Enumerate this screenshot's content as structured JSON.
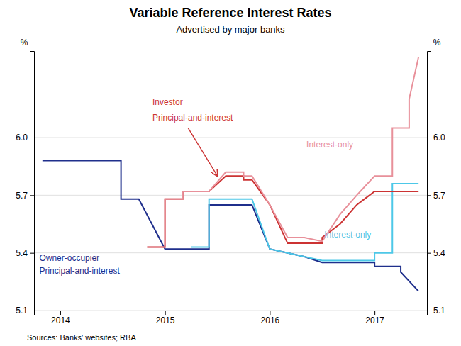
{
  "chart_data": {
    "type": "line",
    "title": "Variable Reference Interest Rates",
    "subtitle": "Advertised by major banks",
    "source": "Sources:  Banks' websites; RBA",
    "ylabel": "%",
    "y2label": "%",
    "xlim": [
      2013.75,
      2017.5
    ],
    "xticks": [
      2014,
      2015,
      2016,
      2017
    ],
    "ylim": [
      5.1,
      6.45
    ],
    "yticks": [
      5.1,
      5.4,
      5.7,
      {
        "value": 6.0,
        "label": "6.0"
      }
    ],
    "y2lim": [
      5.1,
      6.45
    ],
    "y2ticks": [
      5.1,
      5.4,
      5.7,
      {
        "value": 6.0,
        "label": "6.0"
      }
    ],
    "grid": "y",
    "series": [
      {
        "color": "#1f2f8c",
        "x": [
          2013.83,
          2014.58,
          2014.58,
          2014.75,
          2014.75,
          2015.0,
          2015.0,
          2015.42,
          2015.42,
          2015.67,
          2015.67,
          2015.83,
          2015.83,
          2016.0,
          2016.0,
          2016.17,
          2016.17,
          2016.33,
          2016.33,
          2016.5,
          2016.5,
          2016.67,
          2016.67,
          2017.0,
          2017.0,
          2017.25,
          2017.25,
          2017.42
        ],
        "values": [
          5.88,
          5.88,
          5.68,
          5.68,
          5.68,
          5.42,
          5.42,
          5.42,
          5.65,
          5.65,
          5.65,
          5.65,
          5.65,
          5.42,
          5.42,
          5.4,
          5.4,
          5.38,
          5.38,
          5.35,
          5.35,
          5.35,
          5.35,
          5.35,
          5.33,
          5.33,
          5.3,
          5.2
        ]
      },
      {
        "color": "#4dc8e8",
        "x": [
          2015.25,
          2015.42,
          2015.42,
          2015.67,
          2015.67,
          2015.83,
          2015.83,
          2016.0,
          2016.0,
          2016.17,
          2016.17,
          2016.33,
          2016.33,
          2016.5,
          2016.5,
          2016.67,
          2016.67,
          2017.0,
          2017.0,
          2017.17,
          2017.17,
          2017.42
        ],
        "values": [
          5.43,
          5.43,
          5.68,
          5.68,
          5.68,
          5.68,
          5.68,
          5.42,
          5.42,
          5.4,
          5.4,
          5.38,
          5.38,
          5.36,
          5.36,
          5.36,
          5.36,
          5.36,
          5.4,
          5.4,
          5.76,
          5.76
        ]
      },
      {
        "color": "#cc3333",
        "x": [
          2014.83,
          2015.0,
          2015.0,
          2015.17,
          2015.17,
          2015.42,
          2015.42,
          2015.58,
          2015.58,
          2015.75,
          2015.75,
          2015.83,
          2015.83,
          2016.0,
          2016.0,
          2016.17,
          2016.17,
          2016.33,
          2016.33,
          2016.5,
          2016.5,
          2016.67,
          2016.67,
          2016.83,
          2016.83,
          2017.0,
          2017.0,
          2017.42
        ],
        "values": [
          5.43,
          5.43,
          5.68,
          5.68,
          5.72,
          5.72,
          5.72,
          5.8,
          5.8,
          5.8,
          5.78,
          5.78,
          5.78,
          5.65,
          5.65,
          5.45,
          5.45,
          5.45,
          5.45,
          5.45,
          5.48,
          5.55,
          5.55,
          5.65,
          5.65,
          5.72,
          5.72,
          5.72
        ]
      },
      {
        "color": "#e8909a",
        "x": [
          2014.83,
          2015.0,
          2015.0,
          2015.17,
          2015.17,
          2015.42,
          2015.42,
          2015.58,
          2015.58,
          2015.75,
          2015.75,
          2015.83,
          2015.83,
          2016.0,
          2016.0,
          2016.17,
          2016.17,
          2016.33,
          2016.33,
          2016.5,
          2016.5,
          2016.67,
          2016.67,
          2016.83,
          2016.83,
          2017.0,
          2017.0,
          2017.17,
          2017.17,
          2017.33,
          2017.33,
          2017.42
        ],
        "values": [
          5.43,
          5.43,
          5.68,
          5.68,
          5.72,
          5.72,
          5.72,
          5.82,
          5.82,
          5.82,
          5.8,
          5.8,
          5.8,
          5.65,
          5.65,
          5.48,
          5.48,
          5.48,
          5.48,
          5.46,
          5.46,
          5.6,
          5.6,
          5.7,
          5.7,
          5.8,
          5.8,
          5.8,
          6.05,
          6.05,
          6.2,
          6.42
        ]
      }
    ],
    "arrow": {
      "from": [
        2015.22,
        6.05
      ],
      "to": [
        2015.5,
        5.8
      ],
      "color": "#cc3333"
    },
    "annotations": [
      {
        "text": "Investor",
        "x": 2014.88,
        "y": 6.17,
        "color": "#cc3333"
      },
      {
        "text": "Principal-and-interest",
        "x": 2014.88,
        "y": 6.09,
        "color": "#cc3333"
      },
      {
        "text": "Owner-occupier",
        "x": 2013.8,
        "y": 5.36,
        "color": "#1f2f8c"
      },
      {
        "text": "Principal-and-interest",
        "x": 2013.8,
        "y": 5.29,
        "color": "#1f2f8c"
      },
      {
        "text": "Interest-only",
        "x": 2016.35,
        "y": 5.95,
        "color": "#e8909a"
      },
      {
        "text": "Interest-only",
        "x": 2016.52,
        "y": 5.48,
        "color": "#4dc8e8"
      }
    ]
  }
}
